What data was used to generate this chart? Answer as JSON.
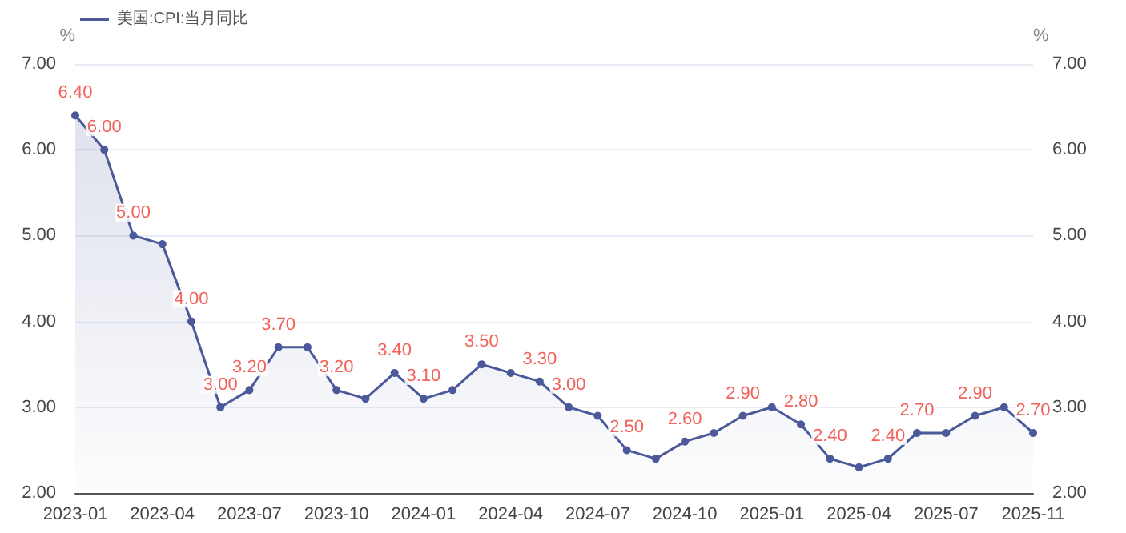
{
  "chart_data": {
    "type": "area",
    "ylabel": "%",
    "y2label": "%",
    "legend": "top left",
    "grid": "y",
    "marker": "circle",
    "categories": [
      "2023-01",
      null,
      null,
      "2023-04",
      null,
      null,
      "2023-07",
      null,
      null,
      "2023-10",
      null,
      null,
      "2024-01",
      null,
      null,
      "2024-04",
      null,
      null,
      "2024-07",
      null,
      null,
      "2024-10",
      null,
      null,
      "2025-01",
      null,
      null,
      "2025-04",
      null,
      null,
      "2025-07",
      null,
      null,
      "2025-11"
    ],
    "ylim": [
      2,
      7
    ],
    "yticks": [
      {
        "value": 2,
        "label": "2.00"
      },
      {
        "value": 3,
        "label": "3.00"
      },
      {
        "value": 4,
        "label": "4.00"
      },
      {
        "value": 5,
        "label": "5.00"
      },
      {
        "value": 6,
        "label": "6.00"
      },
      {
        "value": 7,
        "label": "7.00"
      }
    ],
    "y2lim": [
      2,
      7
    ],
    "y2ticks": [
      {
        "value": 2,
        "label": "2.00"
      },
      {
        "value": 3,
        "label": "3.00"
      },
      {
        "value": 4,
        "label": "4.00"
      },
      {
        "value": 5,
        "label": "5.00"
      },
      {
        "value": 6,
        "label": "6.00"
      },
      {
        "value": 7,
        "label": "7.00"
      }
    ],
    "series": [
      {
        "name": "美国:CPI:当月同比",
        "color": "#4b5899",
        "values": [
          6.4,
          6.0,
          5.0,
          4.9,
          4.0,
          3.0,
          3.2,
          3.7,
          3.7,
          3.2,
          3.1,
          3.4,
          3.1,
          3.2,
          3.5,
          3.4,
          3.3,
          3.0,
          2.9,
          2.5,
          2.4,
          2.6,
          2.7,
          2.9,
          3.0,
          2.8,
          2.4,
          2.3,
          2.4,
          2.7,
          2.7,
          2.9,
          3.0,
          2.7
        ],
        "value_labels": [
          "6.40",
          "6.00",
          "5.00",
          null,
          "4.00",
          "3.00",
          "3.20",
          "3.70",
          null,
          "3.20",
          null,
          "3.40",
          "3.10",
          null,
          "3.50",
          null,
          "3.30",
          "3.00",
          null,
          "2.50",
          null,
          "2.60",
          null,
          "2.90",
          null,
          "2.80",
          "2.40",
          null,
          "2.40",
          "2.70",
          null,
          "2.90",
          null,
          "2.70"
        ]
      }
    ]
  }
}
